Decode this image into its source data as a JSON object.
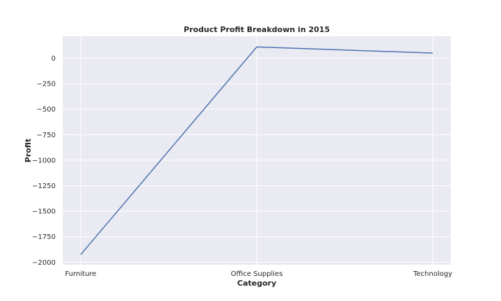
{
  "chart_data": {
    "type": "line",
    "title": "Product Profit Breakdown in 2015",
    "xlabel": "Category",
    "ylabel": "Profit",
    "categories": [
      "Furniture",
      "Office Supplies",
      "Technology"
    ],
    "series": [
      {
        "values": [
          -1925,
          110,
          50
        ]
      }
    ],
    "ylim": [
      -2025,
      215
    ],
    "yticks": [
      0,
      -250,
      -500,
      -750,
      -1000,
      -1250,
      -1500,
      -1750,
      -2000
    ],
    "ytick_labels": [
      "0",
      "−250",
      "−500",
      "−750",
      "−1000",
      "−1250",
      "−1500",
      "−1750",
      "−2000"
    ],
    "grid": true,
    "legend": "none",
    "colors": {
      "background": "#EAEAF2",
      "grid": "#FFFFFF",
      "line": "#4C72B0",
      "text": "#262626"
    }
  }
}
